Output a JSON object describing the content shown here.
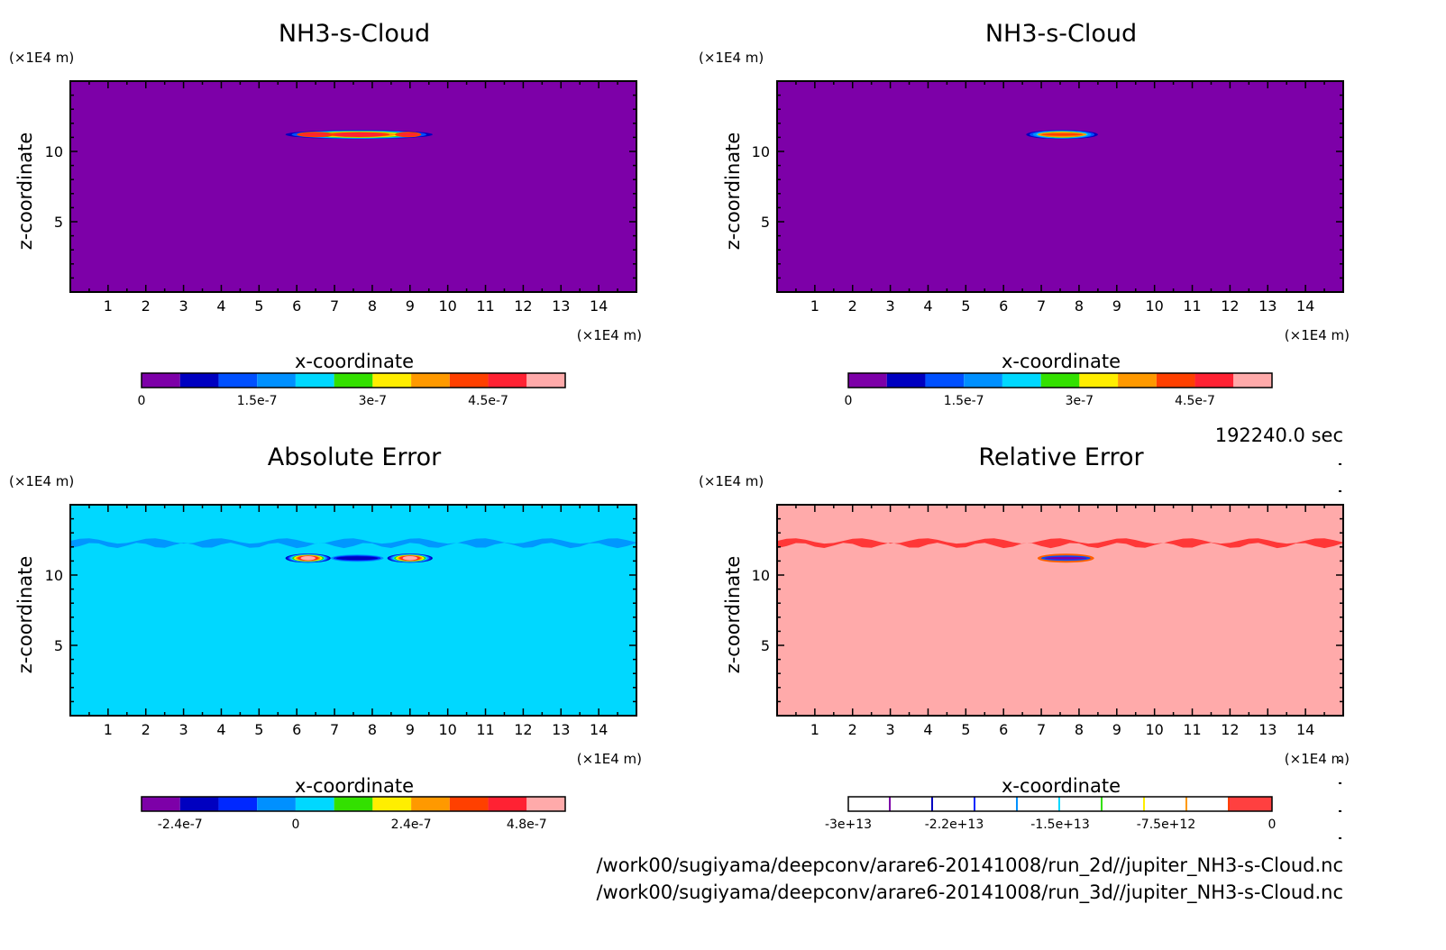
{
  "chart_data": [
    {
      "type": "heatmap",
      "title": "NH3-s-Cloud",
      "xlabel": "x-coordinate",
      "ylabel": "z-coordinate",
      "x_unit": "(×1E4 m)",
      "y_unit": "(×1E4 m)",
      "xlim": [
        0,
        15
      ],
      "ylim": [
        0,
        15
      ],
      "x_ticks": [
        "1",
        "2",
        "3",
        "4",
        "5",
        "6",
        "7",
        "8",
        "9",
        "10",
        "11",
        "12",
        "13",
        "14"
      ],
      "y_ticks": [
        "5",
        "10"
      ],
      "background_level": 0,
      "features": [
        {
          "shape": "cloud-band",
          "z_center": 11.2,
          "x_range": [
            5.7,
            9.6
          ],
          "peak_level": 9,
          "cores": [
            [
              6.0,
              7.0
            ],
            [
              8.6,
              9.3
            ]
          ]
        }
      ],
      "colorbar": {
        "levels": [
          "#7d00a8",
          "#0000c0",
          "#0050ff",
          "#0090ff",
          "#00d8ff",
          "#33e000",
          "#ffee00",
          "#ff9900",
          "#ff4000",
          "#ff2233",
          "#ffaaaa"
        ],
        "labels": [
          "0",
          "1.5e-7",
          "3e-7",
          "4.5e-7"
        ],
        "label_positions": [
          0,
          1.5e-07,
          3e-07,
          4.5e-07
        ],
        "range": [
          0,
          5.5e-07
        ]
      }
    },
    {
      "type": "heatmap",
      "title": "NH3-s-Cloud",
      "xlabel": "x-coordinate",
      "ylabel": "z-coordinate",
      "x_unit": "(×1E4 m)",
      "y_unit": "(×1E4 m)",
      "xlim": [
        0,
        15
      ],
      "ylim": [
        0,
        15
      ],
      "x_ticks": [
        "1",
        "2",
        "3",
        "4",
        "5",
        "6",
        "7",
        "8",
        "9",
        "10",
        "11",
        "12",
        "13",
        "14"
      ],
      "y_ticks": [
        "5",
        "10"
      ],
      "background_level": 0,
      "features": [
        {
          "shape": "cloud-band",
          "z_center": 11.2,
          "x_range": [
            6.6,
            8.5
          ],
          "peak_level": 8,
          "cores": [
            [
              6.9,
              8.2
            ]
          ]
        }
      ],
      "colorbar": {
        "levels": [
          "#7d00a8",
          "#0000c0",
          "#0050ff",
          "#0090ff",
          "#00d8ff",
          "#33e000",
          "#ffee00",
          "#ff9900",
          "#ff4000",
          "#ff2233",
          "#ffaaaa"
        ],
        "labels": [
          "0",
          "1.5e-7",
          "3e-7",
          "4.5e-7"
        ],
        "label_positions": [
          0,
          1.5e-07,
          3e-07,
          4.5e-07
        ],
        "range": [
          0,
          5.5e-07
        ]
      }
    },
    {
      "type": "heatmap",
      "title": "Absolute Error",
      "xlabel": "x-coordinate",
      "ylabel": "z-coordinate",
      "x_unit": "(×1E4 m)",
      "y_unit": "(×1E4 m)",
      "xlim": [
        0,
        15
      ],
      "ylim": [
        0,
        15
      ],
      "x_ticks": [
        "1",
        "2",
        "3",
        "4",
        "5",
        "6",
        "7",
        "8",
        "9",
        "10",
        "11",
        "12",
        "13",
        "14"
      ],
      "y_ticks": [
        "5",
        "10"
      ],
      "background_level": 4,
      "features": [
        {
          "shape": "wavy-strip",
          "z_center": 12.3,
          "x_range": [
            0,
            15
          ],
          "color_level": 3
        },
        {
          "shape": "cloud-band",
          "z_center": 11.2,
          "x_range": [
            5.7,
            6.9
          ],
          "peak_level": 10
        },
        {
          "shape": "cloud-band",
          "z_center": 11.2,
          "x_range": [
            8.4,
            9.6
          ],
          "peak_level": 10
        },
        {
          "shape": "negative-band",
          "z_center": 11.2,
          "x_range": [
            6.9,
            8.3
          ],
          "peak_level": 1
        }
      ],
      "colorbar": {
        "levels": [
          "#7d00a8",
          "#0000c0",
          "#0028ff",
          "#0090ff",
          "#00d8ff",
          "#33e000",
          "#ffee00",
          "#ff9900",
          "#ff4000",
          "#ff2233",
          "#ffaaaa"
        ],
        "labels": [
          "-2.4e-7",
          "0",
          "2.4e-7",
          "4.8e-7"
        ],
        "label_positions": [
          -2.4e-07,
          0,
          2.4e-07,
          4.8e-07
        ],
        "range": [
          -3.2e-07,
          5.6e-07
        ]
      }
    },
    {
      "type": "heatmap",
      "title": "Relative Error",
      "xlabel": "x-coordinate",
      "ylabel": "z-coordinate",
      "x_unit": "(×1E4 m)",
      "y_unit": "(×1E4 m)",
      "xlim": [
        0,
        15
      ],
      "ylim": [
        0,
        15
      ],
      "x_ticks": [
        "1",
        "2",
        "3",
        "4",
        "5",
        "6",
        "7",
        "8",
        "9",
        "10",
        "11",
        "12",
        "13",
        "14"
      ],
      "y_ticks": [
        "5",
        "10"
      ],
      "background_level": "#ffaaaa",
      "features": [
        {
          "shape": "wavy-strip",
          "z_center": 12.3,
          "x_range": [
            0,
            15
          ],
          "color": "#ff2a2a"
        },
        {
          "shape": "cloud-band",
          "z_center": 11.2,
          "x_range": [
            6.9,
            8.4
          ],
          "color": "#ff2a2a"
        }
      ],
      "colorbar": {
        "levels": [
          "#7d00a8",
          "#0000c0",
          "#0028ff",
          "#0090ff",
          "#00d8ff",
          "#33e000",
          "#ffee00",
          "#ff9900",
          "#ff4000",
          "#ff2233"
        ],
        "labels": [
          "-3e+13",
          "-2.2e+13",
          "-1.5e+13",
          "-7.5e+12",
          "0"
        ],
        "label_positions": [
          -30000000000000.0,
          -22500000000000.0,
          -15000000000000.0,
          -7500000000000.0,
          0
        ],
        "range": [
          -30000000000000.0,
          0
        ]
      }
    }
  ],
  "info": {
    "time": "192240.0 sec",
    "file_2d": "/work00/sugiyama/deepconv/arare6-20141008/run_2d//jupiter_NH3-s-Cloud.nc",
    "file_3d": "/work00/sugiyama/deepconv/arare6-20141008/run_3d//jupiter_NH3-s-Cloud.nc"
  }
}
